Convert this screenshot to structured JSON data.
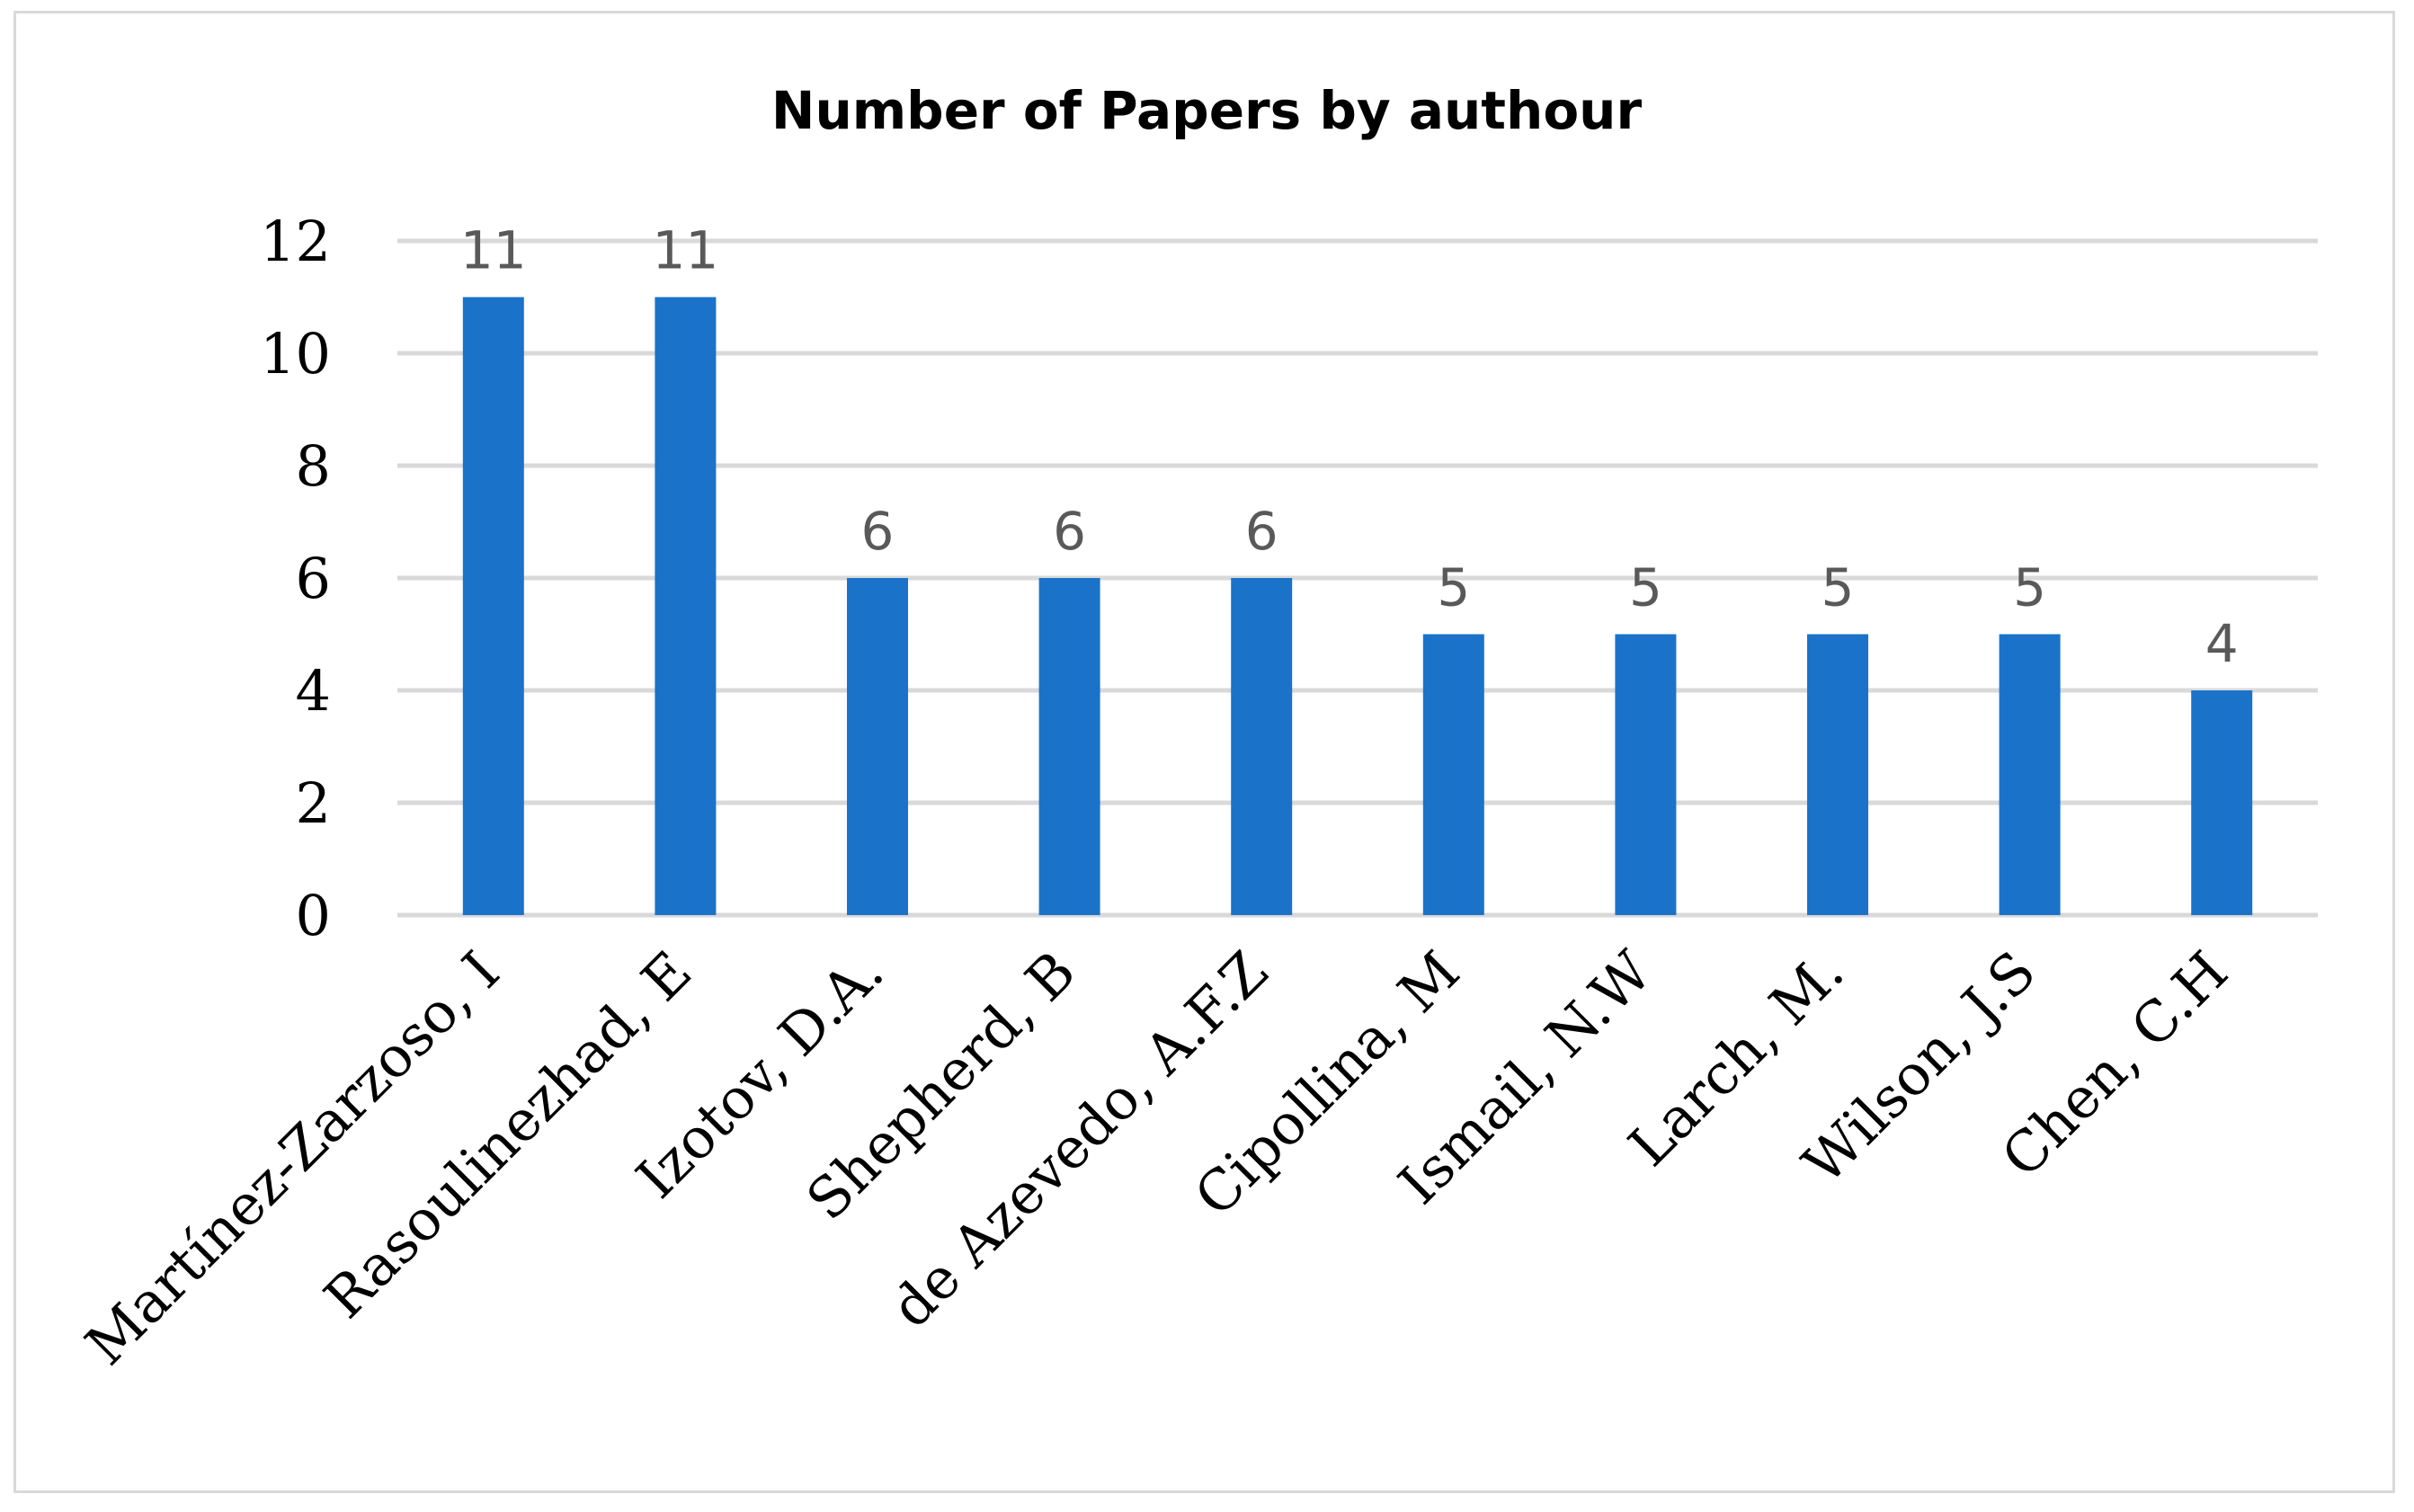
{
  "chart_data": {
    "type": "bar",
    "title": "Number of Papers by authour",
    "xlabel": "",
    "ylabel": "",
    "categories": [
      "Martínez-Zarzoso, I",
      "Rasoulinezhad, E",
      "Izotov, D.A.",
      "Shepherd, B",
      "de Azevedo, A.F.Z",
      "Cipollina, M",
      "Ismail, N.W",
      "Larch, M.",
      "Wilson, J.S",
      "Chen, C.H"
    ],
    "values": [
      11,
      11,
      6,
      6,
      6,
      5,
      5,
      5,
      5,
      4
    ],
    "ylim": [
      0,
      12
    ],
    "yticks": [
      0,
      2,
      4,
      6,
      8,
      10,
      12
    ],
    "grid": true,
    "legend": "none",
    "data_labels": true,
    "colors": {
      "bar": "#1b73c9",
      "grid": "#d9d9d9",
      "data_label": "#595959",
      "frame": "#d9d9d9"
    }
  }
}
